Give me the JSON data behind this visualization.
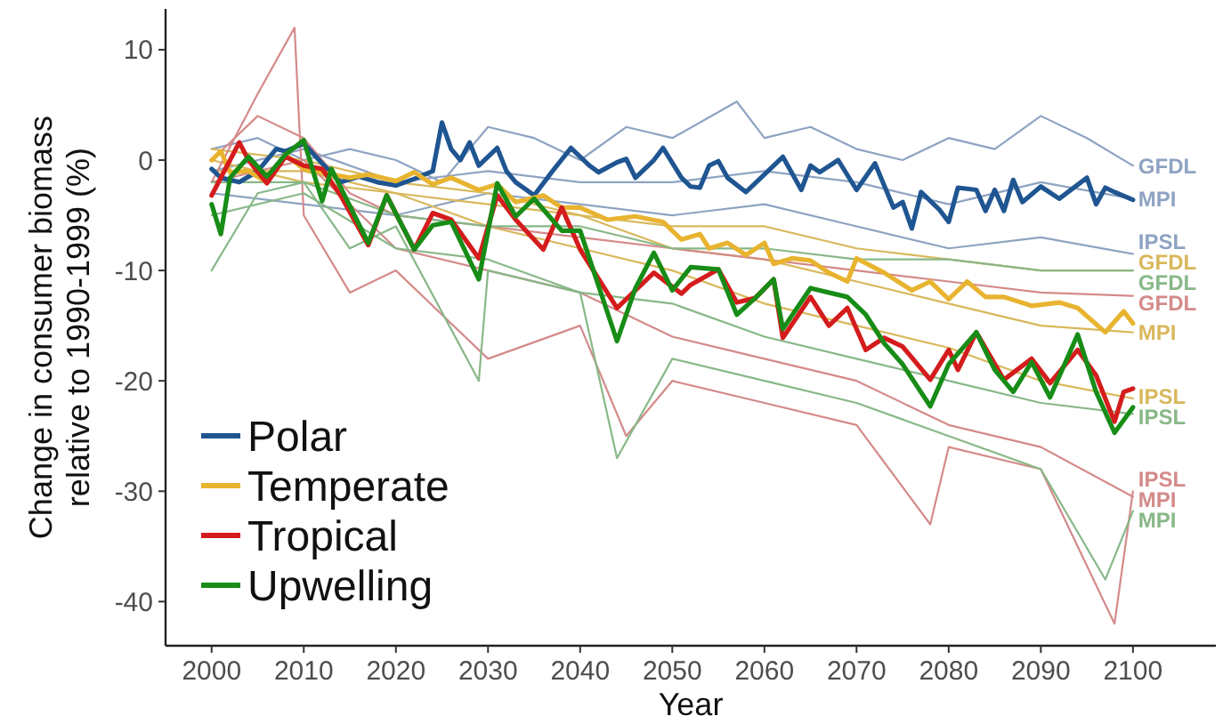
{
  "chart_data": {
    "type": "line",
    "xlabel": "Year",
    "ylabel": "Change in consumer biomass\nrelative to 1990-1999 (%)",
    "xlim": [
      1995,
      2109
    ],
    "ylim": [
      -44,
      13.7
    ],
    "xticks": [
      2000,
      2010,
      2020,
      2030,
      2040,
      2050,
      2060,
      2070,
      2080,
      2090,
      2100
    ],
    "yticks": [
      -40,
      -30,
      -20,
      -10,
      0,
      10
    ],
    "grid": false,
    "legend": "bottom left",
    "line_style": "solid",
    "marker": "none",
    "series": [
      {
        "name": "GFDL",
        "color": "#8ea3c2",
        "x": [
          2000,
          2005,
          2010,
          2015,
          2020,
          2025,
          2030,
          2035,
          2040,
          2045,
          2050,
          2057,
          2060,
          2065,
          2070,
          2075,
          2080,
          2085,
          2090,
          2095,
          2100
        ],
        "values": [
          1,
          2,
          0,
          1,
          0,
          -2,
          3,
          2,
          0,
          3,
          2,
          5.3,
          2,
          3,
          1,
          0,
          2,
          1,
          4,
          2,
          -0.5
        ]
      },
      {
        "name": "MPI",
        "color": "#8ea3c2",
        "x": [
          2000,
          2010,
          2020,
          2030,
          2040,
          2050,
          2060,
          2070,
          2080,
          2090,
          2100
        ],
        "values": [
          -1,
          1,
          -2,
          -1,
          -2,
          -2,
          -1,
          -2,
          -4,
          -2,
          -3.5
        ]
      },
      {
        "name": "IPSL",
        "color": "#8ea3c2",
        "x": [
          2000,
          2010,
          2020,
          2030,
          2040,
          2050,
          2060,
          2070,
          2080,
          2090,
          2100
        ],
        "values": [
          -3,
          -4,
          -5,
          -3,
          -4,
          -5,
          -4,
          -6,
          -8,
          -7,
          -8.5
        ]
      },
      {
        "name": "GFDL",
        "color": "#d9b85c",
        "x": [
          2000,
          2010,
          2020,
          2030,
          2040,
          2050,
          2060,
          2070,
          2080,
          2090,
          2100
        ],
        "values": [
          0,
          -2,
          -3,
          -4,
          -5,
          -6,
          -6,
          -8,
          -9,
          -10,
          -10
        ]
      },
      {
        "name": "MPI",
        "color": "#d9b85c",
        "x": [
          2000,
          2010,
          2020,
          2030,
          2040,
          2050,
          2060,
          2070,
          2080,
          2090,
          2100
        ],
        "values": [
          1,
          0,
          -2,
          -3,
          -5,
          -8,
          -9,
          -11,
          -13,
          -15,
          -15.6
        ]
      },
      {
        "name": "IPSL",
        "color": "#d9b85c",
        "x": [
          2000,
          2010,
          2020,
          2030,
          2040,
          2050,
          2060,
          2070,
          2080,
          2090,
          2100
        ],
        "values": [
          -1,
          -1,
          -3,
          -6,
          -8,
          -10,
          -13,
          -15,
          -17,
          -20,
          -21.6
        ]
      },
      {
        "name": "GFDL",
        "color": "#d48a8a",
        "x": [
          2000,
          2005,
          2010,
          2015,
          2020,
          2030,
          2040,
          2050,
          2060,
          2070,
          2080,
          2090,
          2100
        ],
        "values": [
          0,
          4,
          2,
          -3,
          -5,
          -6,
          -7,
          -8,
          -9,
          -10,
          -11,
          -12,
          -12.3
        ]
      },
      {
        "name": "IPSL",
        "color": "#d48a8a",
        "x": [
          2000,
          2005,
          2009,
          2010,
          2015,
          2020,
          2030,
          2040,
          2045,
          2050,
          2060,
          2070,
          2078,
          2080,
          2090,
          2098,
          2100
        ],
        "values": [
          -2,
          6,
          12,
          -5,
          -12,
          -10,
          -18,
          -15,
          -25,
          -20,
          -22,
          -24,
          -33,
          -26,
          -28,
          -42,
          -30
        ]
      },
      {
        "name": "MPI",
        "color": "#d48a8a",
        "x": [
          2000,
          2010,
          2020,
          2030,
          2040,
          2050,
          2060,
          2070,
          2080,
          2090,
          2100
        ],
        "values": [
          -2,
          0,
          -8,
          -10,
          -12,
          -16,
          -18,
          -20,
          -24,
          -26,
          -30.5
        ]
      },
      {
        "name": "GFDL",
        "color": "#88b888",
        "x": [
          2000,
          2010,
          2020,
          2030,
          2040,
          2050,
          2060,
          2070,
          2080,
          2090,
          2100
        ],
        "values": [
          -2,
          -2,
          -5,
          -6,
          -6,
          -8,
          -8,
          -9,
          -9,
          -10,
          -10
        ]
      },
      {
        "name": "IPSL",
        "color": "#88b888",
        "x": [
          2000,
          2010,
          2020,
          2030,
          2040,
          2050,
          2060,
          2070,
          2080,
          2090,
          2100
        ],
        "values": [
          -5,
          -3,
          -8,
          -9,
          -12,
          -13,
          -16,
          -18,
          -20,
          -22,
          -23
        ]
      },
      {
        "name": "MPI",
        "color": "#88b888",
        "x": [
          2000,
          2005,
          2010,
          2015,
          2020,
          2029,
          2030,
          2040,
          2044,
          2050,
          2060,
          2070,
          2080,
          2090,
          2097,
          2100
        ],
        "values": [
          -10,
          -3,
          -2,
          -8,
          -6,
          -20,
          -10,
          -12,
          -27,
          -18,
          -20,
          -22,
          -25,
          -28,
          -38,
          -31.8
        ]
      },
      {
        "name": "Polar",
        "color": "#1f5591",
        "x": [
          2000,
          2001,
          2003,
          2005,
          2007,
          2008,
          2010,
          2012,
          2014,
          2016,
          2018,
          2020,
          2022,
          2024,
          2025,
          2026,
          2027,
          2028,
          2029,
          2031,
          2032,
          2033,
          2035,
          2037,
          2039,
          2041,
          2042,
          2044,
          2045,
          2046,
          2048,
          2049,
          2051,
          2052,
          2053,
          2054,
          2055,
          2056,
          2058,
          2060,
          2062,
          2064,
          2065,
          2066,
          2068,
          2070,
          2072,
          2074,
          2075,
          2076,
          2077,
          2079,
          2080,
          2081,
          2083,
          2084,
          2085,
          2086,
          2087,
          2088,
          2090,
          2092,
          2095,
          2096,
          2097,
          2098,
          2100
        ],
        "values": [
          -0.8,
          -1.6,
          -2,
          -1,
          1,
          0.8,
          1.5,
          -0.3,
          -2,
          -1.5,
          -2,
          -2.3,
          -1.7,
          -1,
          3.4,
          1,
          0,
          1.6,
          -0.5,
          1.1,
          -1,
          -2,
          -3.2,
          -1,
          1.1,
          -0.5,
          -1.1,
          -0.2,
          0.1,
          -1.6,
          0,
          1.1,
          -1.6,
          -2.4,
          -2.5,
          -0.5,
          -0.1,
          -1.6,
          -2.9,
          -1.3,
          0.3,
          -2.7,
          -0.5,
          -1.1,
          0,
          -2.7,
          -0.3,
          -4.3,
          -3.8,
          -6.2,
          -2.9,
          -4.5,
          -5.6,
          -2.5,
          -2.7,
          -4.6,
          -2.7,
          -4.6,
          -1.8,
          -3.8,
          -2.4,
          -3.5,
          -1.6,
          -4,
          -2.5,
          -2.9,
          -3.6
        ]
      },
      {
        "name": "Temperate",
        "color": "#e8b430",
        "x": [
          2000,
          2001,
          2002,
          2004,
          2006,
          2008,
          2010,
          2013,
          2015,
          2017,
          2020,
          2022,
          2024,
          2026,
          2029,
          2031,
          2033,
          2036,
          2038,
          2040,
          2043,
          2046,
          2049,
          2051,
          2053,
          2054,
          2056,
          2058,
          2060,
          2061,
          2063,
          2065,
          2067,
          2069,
          2070,
          2073,
          2076,
          2078,
          2080,
          2082,
          2084,
          2086,
          2089,
          2092,
          2094,
          2097,
          2099,
          2100
        ],
        "values": [
          0,
          0.8,
          -1.1,
          -1,
          -2,
          0.5,
          -0.8,
          -1.3,
          -1.6,
          -1.3,
          -1.9,
          -1.1,
          -2.2,
          -1.6,
          -2.7,
          -2.2,
          -3.8,
          -3.2,
          -4.3,
          -4.3,
          -5.4,
          -5.1,
          -5.6,
          -7.2,
          -6.7,
          -8,
          -7.5,
          -8.6,
          -7.5,
          -9.4,
          -8.9,
          -9.1,
          -10.2,
          -11,
          -8.9,
          -10.2,
          -11.8,
          -11,
          -12.6,
          -11,
          -12.4,
          -12.4,
          -13.2,
          -12.9,
          -13.4,
          -15.6,
          -13.7,
          -14.8
        ]
      },
      {
        "name": "Tropical",
        "color": "#d41c1c",
        "x": [
          2000,
          2003,
          2004,
          2006,
          2008,
          2010,
          2012,
          2014,
          2017,
          2019,
          2022,
          2024,
          2026,
          2029,
          2031,
          2033,
          2036,
          2038,
          2040,
          2044,
          2046,
          2048,
          2051,
          2052,
          2055,
          2057,
          2059,
          2061,
          2062,
          2065,
          2067,
          2069,
          2071,
          2073,
          2075,
          2078,
          2080,
          2081,
          2083,
          2086,
          2089,
          2091,
          2094,
          2096,
          2098,
          2099,
          2100
        ],
        "values": [
          -3.2,
          1.6,
          0,
          -2.1,
          0.3,
          -0.5,
          -0.8,
          -3.2,
          -7.7,
          -3.2,
          -8.1,
          -4.8,
          -5.4,
          -8.9,
          -3.2,
          -5.4,
          -8.1,
          -4.3,
          -8.1,
          -13.4,
          -11.8,
          -10.2,
          -12.1,
          -11.3,
          -9.9,
          -12.9,
          -12.5,
          -10.8,
          -16.1,
          -12.4,
          -15,
          -13.4,
          -17.2,
          -16.1,
          -16.9,
          -19.9,
          -17.2,
          -19,
          -15.6,
          -19.9,
          -18,
          -20.2,
          -17.2,
          -19.5,
          -23.7,
          -21,
          -20.7
        ]
      },
      {
        "name": "Upwelling",
        "color": "#178c17",
        "x": [
          2000,
          2001,
          2002,
          2004,
          2006,
          2008,
          2010,
          2012,
          2013,
          2017,
          2019,
          2022,
          2024,
          2026,
          2029,
          2031,
          2033,
          2035,
          2038,
          2040,
          2044,
          2046,
          2048,
          2050,
          2052,
          2055,
          2057,
          2059,
          2061,
          2062,
          2065,
          2069,
          2071,
          2073,
          2075,
          2078,
          2080,
          2083,
          2085,
          2087,
          2089,
          2091,
          2094,
          2096,
          2098,
          2100
        ],
        "values": [
          -4,
          -6.7,
          -1.6,
          0.3,
          -1.5,
          0.5,
          1.8,
          -3.7,
          -0.8,
          -7.5,
          -3.2,
          -8.1,
          -5.9,
          -5.6,
          -10.8,
          -2.1,
          -5.1,
          -3.5,
          -6.4,
          -6.4,
          -16.4,
          -11.6,
          -8.4,
          -11.8,
          -9.7,
          -9.9,
          -14,
          -12.5,
          -10.8,
          -15.3,
          -11.6,
          -12.4,
          -14,
          -16.6,
          -18.5,
          -22.3,
          -18.5,
          -15.6,
          -19,
          -21,
          -18.3,
          -21.5,
          -15.8,
          -21,
          -24.7,
          -22.4
        ]
      }
    ]
  }
}
